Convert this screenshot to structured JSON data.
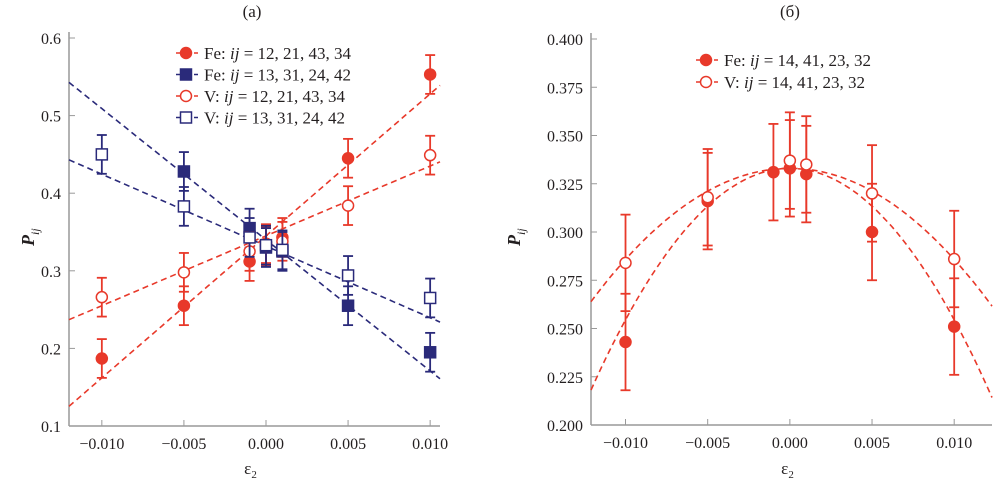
{
  "chart_data": [
    {
      "type": "scatter",
      "title": "(a)",
      "xlabel": "ε",
      "xlabel_sub": "2",
      "ylabel": "P",
      "ylabel_sub": "ij",
      "xlim": [
        -0.012,
        0.0106
      ],
      "ylim": [
        0.1,
        0.6
      ],
      "xticks": [
        -0.01,
        -0.005,
        0,
        0.005,
        0.01
      ],
      "xtick_labels": [
        "−0.010",
        "−0.005",
        "0.000",
        "0.005",
        "0.010"
      ],
      "yticks": [
        0.1,
        0.2,
        0.3,
        0.4,
        0.5,
        0.6
      ],
      "ytick_labels": [
        "0.1",
        "0.2",
        "0.3",
        "0.4",
        "0.5",
        "0.6"
      ],
      "legend_position": "top-right",
      "series": [
        {
          "name": "Fe: ij = 12, 21, 43, 34",
          "prefix": "Fe: ",
          "ij": "ij",
          "rest": " = 12, 21, 43, 34",
          "color": "#e8392a",
          "marker": "circle",
          "filled": true,
          "x": [
            -0.01,
            -0.005,
            -0.001,
            0,
            0.001,
            0.005,
            0.01
          ],
          "y": [
            0.187,
            0.255,
            0.312,
            0.332,
            0.343,
            0.445,
            0.553
          ],
          "err": 0.025,
          "fit": {
            "kind": "linear",
            "intercept": 0.345,
            "slope": 18.3
          }
        },
        {
          "name": "Fe: ij = 13, 31, 24, 42",
          "prefix": "Fe: ",
          "ij": "ij",
          "rest": " = 13, 31, 24, 42",
          "color": "#2a2a7a",
          "marker": "square",
          "filled": true,
          "x": [
            -0.005,
            -0.001,
            0,
            0.001,
            0.005,
            0.01
          ],
          "y": [
            0.428,
            0.355,
            0.33,
            0.325,
            0.255,
            0.195
          ],
          "err": 0.025,
          "fit": {
            "kind": "linear",
            "intercept": 0.34,
            "slope": -16.9
          }
        },
        {
          "name": "V: ij = 12, 21, 43, 34",
          "prefix": "V: ",
          "ij": "ij",
          "rest": " = 12, 21, 43, 34",
          "color": "#e8392a",
          "marker": "circle",
          "filled": false,
          "x": [
            -0.01,
            -0.005,
            -0.001,
            0,
            0.001,
            0.005,
            0.01
          ],
          "y": [
            0.266,
            0.298,
            0.325,
            0.335,
            0.338,
            0.384,
            0.449
          ],
          "err": 0.025,
          "fit": {
            "kind": "linear",
            "intercept": 0.345,
            "slope": 9.0
          }
        },
        {
          "name": "V: ij = 13, 31, 24, 42",
          "prefix": "V: ",
          "ij": "ij",
          "rest": " = 13, 31, 24, 42",
          "color": "#2a2a7a",
          "marker": "square",
          "filled": false,
          "x": [
            -0.01,
            -0.005,
            -0.001,
            0,
            0.001,
            0.005,
            0.01
          ],
          "y": [
            0.45,
            0.383,
            0.343,
            0.333,
            0.327,
            0.294,
            0.265
          ],
          "err": 0.025,
          "fit": {
            "kind": "linear",
            "intercept": 0.332,
            "slope": -9.25
          }
        }
      ]
    },
    {
      "type": "scatter",
      "title": "(б)",
      "xlabel": "ε",
      "xlabel_sub": "2",
      "ylabel": "P",
      "ylabel_sub": "ij",
      "xlim": [
        -0.0121,
        0.0123
      ],
      "ylim": [
        0.2,
        0.4
      ],
      "xticks": [
        -0.01,
        -0.005,
        0,
        0.005,
        0.01
      ],
      "xtick_labels": [
        "−0.010",
        "−0.005",
        "0.000",
        "0.005",
        "0.010"
      ],
      "yticks": [
        0.2,
        0.225,
        0.25,
        0.275,
        0.3,
        0.325,
        0.35,
        0.375,
        0.4
      ],
      "ytick_labels": [
        "0.200",
        "0.225",
        "0.250",
        "0.275",
        "0.300",
        "0.325",
        "0.350",
        "0.375",
        "0.400"
      ],
      "legend_position": "top-center",
      "series": [
        {
          "name": "Fe: ij = 14, 41, 23, 32",
          "prefix": "Fe: ",
          "ij": "ij",
          "rest": " = 14, 41, 23, 32",
          "color": "#e8392a",
          "marker": "circle",
          "filled": true,
          "x": [
            -0.01,
            -0.005,
            -0.001,
            0,
            0.001,
            0.005,
            0.01
          ],
          "y": [
            0.243,
            0.316,
            0.331,
            0.333,
            0.33,
            0.3,
            0.251
          ],
          "err": 0.025,
          "fit": {
            "kind": "quadratic",
            "c": 0.333,
            "a": -785
          }
        },
        {
          "name": "V: ij = 14, 41, 23, 32",
          "prefix": "V: ",
          "ij": "ij",
          "rest": " = 14, 41, 23, 32",
          "color": "#e8392a",
          "marker": "circle",
          "filled": false,
          "x": [
            -0.01,
            -0.005,
            0,
            0.001,
            0.005,
            0.01
          ],
          "y": [
            0.284,
            0.318,
            0.337,
            0.335,
            0.32,
            0.286
          ],
          "err": 0.025,
          "fit": {
            "kind": "quadratic",
            "c": 0.333,
            "a": -472
          }
        }
      ]
    }
  ]
}
